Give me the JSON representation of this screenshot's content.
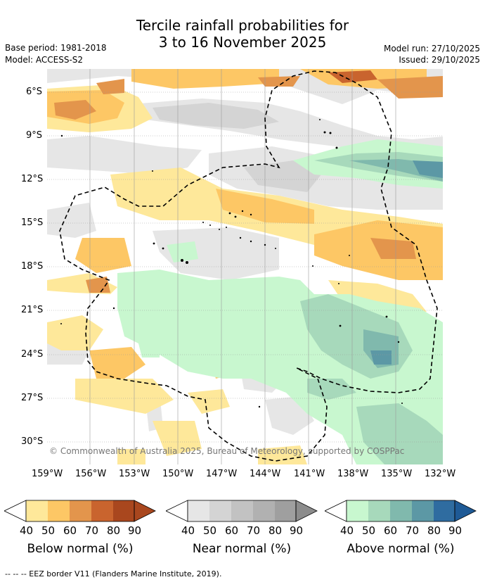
{
  "title": {
    "line1": "Tercile rainfall probabilities for",
    "line2": "3 to 16 November 2025"
  },
  "header": {
    "base_period": "Base period: 1981-2018",
    "model": "Model: ACCESS-S2",
    "model_run": "Model run: 27/10/2025",
    "issued": "Issued: 29/10/2025"
  },
  "map": {
    "latitude_labels": [
      "6°S",
      "9°S",
      "12°S",
      "15°S",
      "18°S",
      "21°S",
      "24°S",
      "27°S",
      "30°S"
    ],
    "longitude_labels": [
      "159°W",
      "156°W",
      "153°W",
      "150°W",
      "147°W",
      "144°W",
      "141°W",
      "138°W",
      "135°W",
      "132°W"
    ],
    "copyright": "© Commonwealth of Australia 2025, Bureau of Meteorology, supported by COSPPac"
  },
  "legends": [
    {
      "title": "Below normal (%)",
      "ticks": [
        "40",
        "50",
        "60",
        "70",
        "80",
        "90"
      ],
      "colors": [
        "#fee89a",
        "#fdc765",
        "#e3954c",
        "#c9642e",
        "#a9471e",
        "#a9471e"
      ]
    },
    {
      "title": "Near normal (%)",
      "ticks": [
        "40",
        "50",
        "60",
        "70",
        "80",
        "90"
      ],
      "colors": [
        "#e6e6e6",
        "#d4d4d4",
        "#c2c2c2",
        "#b1b1b1",
        "#9f9f9f",
        "#8c8c8c"
      ]
    },
    {
      "title": "Above normal (%)",
      "ticks": [
        "40",
        "50",
        "60",
        "70",
        "80",
        "90"
      ],
      "colors": [
        "#c8f7cf",
        "#a7d9bb",
        "#80b9ad",
        "#5c98a5",
        "#2f6ca0",
        "#1e5a96"
      ]
    }
  ],
  "footnote": "-- -- -- EEZ border V11 (Flanders Marine Institute, 2019)."
}
